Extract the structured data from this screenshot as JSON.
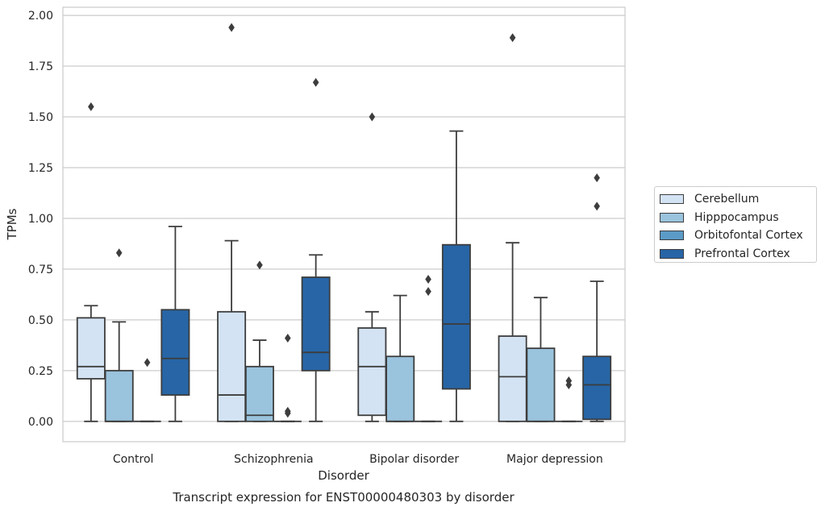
{
  "chart_data": {
    "type": "box",
    "title": "Transcript expression for ENST00000480303 by disorder",
    "xlabel": "Disorder",
    "ylabel": "TPMs",
    "ylim": [
      -0.1,
      2.04
    ],
    "yticks": [
      "0.00",
      "0.25",
      "0.50",
      "0.75",
      "1.00",
      "1.25",
      "1.50",
      "1.75",
      "2.00"
    ],
    "grid": "horizontal",
    "legend_position": "right",
    "categories": [
      "Control",
      "Schizophrenia",
      "Bipolar disorder",
      "Major depression"
    ],
    "series": [
      {
        "name": "Cerebellum",
        "color": "#d3e3f3",
        "boxes": [
          {
            "whislo": 0.0,
            "q1": 0.21,
            "med": 0.27,
            "q3": 0.51,
            "whishi": 0.57,
            "fliers": [
              1.55
            ]
          },
          {
            "whislo": 0.0,
            "q1": 0.0,
            "med": 0.13,
            "q3": 0.54,
            "whishi": 0.89,
            "fliers": [
              1.94
            ]
          },
          {
            "whislo": 0.0,
            "q1": 0.03,
            "med": 0.27,
            "q3": 0.46,
            "whishi": 0.54,
            "fliers": [
              1.5
            ]
          },
          {
            "whislo": 0.0,
            "q1": 0.0,
            "med": 0.22,
            "q3": 0.42,
            "whishi": 0.88,
            "fliers": [
              1.89
            ]
          }
        ]
      },
      {
        "name": "Hipppocampus",
        "color": "#9ac3dd",
        "boxes": [
          {
            "whislo": 0.0,
            "q1": 0.0,
            "med": 0.0,
            "q3": 0.25,
            "whishi": 0.49,
            "fliers": [
              0.83
            ]
          },
          {
            "whislo": 0.0,
            "q1": 0.0,
            "med": 0.03,
            "q3": 0.27,
            "whishi": 0.4,
            "fliers": [
              0.77
            ]
          },
          {
            "whislo": 0.0,
            "q1": 0.0,
            "med": 0.0,
            "q3": 0.32,
            "whishi": 0.62,
            "fliers": []
          },
          {
            "whislo": 0.0,
            "q1": 0.0,
            "med": 0.0,
            "q3": 0.36,
            "whishi": 0.61,
            "fliers": []
          }
        ]
      },
      {
        "name": "Orbitofontal Cortex",
        "color": "#5a9bc7",
        "boxes": [
          {
            "whislo": 0.0,
            "q1": 0.0,
            "med": 0.0,
            "q3": 0.0,
            "whishi": 0.0,
            "fliers": [
              0.29
            ]
          },
          {
            "whislo": 0.0,
            "q1": 0.0,
            "med": 0.0,
            "q3": 0.0,
            "whishi": 0.0,
            "fliers": [
              0.41,
              0.05,
              0.04
            ]
          },
          {
            "whislo": 0.0,
            "q1": 0.0,
            "med": 0.0,
            "q3": 0.0,
            "whishi": 0.0,
            "fliers": [
              0.7,
              0.64
            ]
          },
          {
            "whislo": 0.0,
            "q1": 0.0,
            "med": 0.0,
            "q3": 0.0,
            "whishi": 0.0,
            "fliers": [
              0.2,
              0.18
            ]
          }
        ]
      },
      {
        "name": "Prefrontal Cortex",
        "color": "#2765a6",
        "boxes": [
          {
            "whislo": 0.0,
            "q1": 0.13,
            "med": 0.31,
            "q3": 0.55,
            "whishi": 0.96,
            "fliers": []
          },
          {
            "whislo": 0.0,
            "q1": 0.25,
            "med": 0.34,
            "q3": 0.71,
            "whishi": 0.82,
            "fliers": [
              1.67
            ]
          },
          {
            "whislo": 0.0,
            "q1": 0.16,
            "med": 0.48,
            "q3": 0.87,
            "whishi": 1.43,
            "fliers": []
          },
          {
            "whislo": 0.0,
            "q1": 0.01,
            "med": 0.18,
            "q3": 0.32,
            "whishi": 0.69,
            "fliers": [
              1.2,
              1.06
            ]
          }
        ]
      }
    ]
  }
}
